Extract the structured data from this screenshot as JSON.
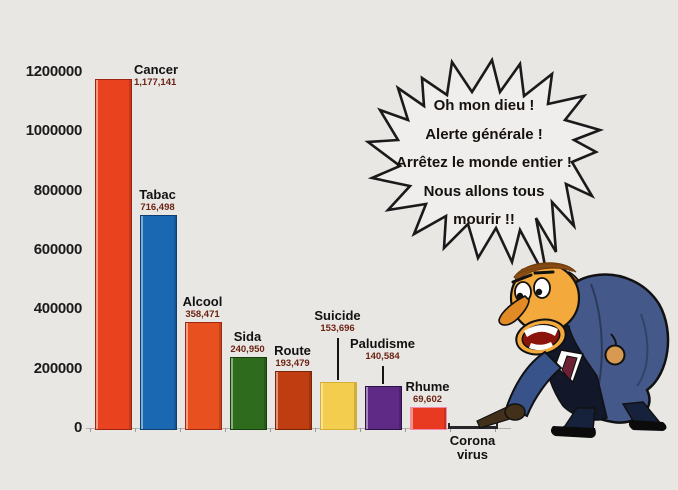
{
  "background_color": "#e9e7e4",
  "speech_bubble": {
    "lines": [
      "Oh mon dieu !",
      "Alerte générale !",
      "Arrêtez le monde entier !",
      "Nous allons tous",
      "mourir !!"
    ],
    "fill": "#efeeec",
    "stroke": "#1a1a1a"
  },
  "cartoon": {
    "description": "panicked man in navy suit, bent over, screaming and pointing at the tiny coronavirus bar",
    "suit_color": "#44598a",
    "suit_front_color": "#12182a",
    "skin_color": "#f4a93d",
    "hair_color": "#8a4e16",
    "mouth_color": "#8c150b"
  },
  "chart_data": {
    "type": "bar",
    "title": "",
    "xlabel": "",
    "ylabel": "",
    "ylim": [
      0,
      1200000
    ],
    "ytick_step": 200000,
    "ytick_labels": [
      "1200000",
      "1000000",
      "800000",
      "600000",
      "400000",
      "200000",
      "0"
    ],
    "grid": false,
    "legend": null,
    "categories": [
      "Cancer",
      "Tabac",
      "Alcool",
      "Sida",
      "Route",
      "Suicide",
      "Paludisme",
      "Rhume",
      "Corona virus"
    ],
    "bars": [
      {
        "label": "Cancer",
        "value": 1177141,
        "value_label": "1,177,141",
        "color": "#e8421f",
        "border": "#9c2410",
        "label_pos": "right",
        "leader_gap": 0
      },
      {
        "label": "Tabac",
        "value": 716498,
        "value_label": "716,498",
        "color": "#1a67b2",
        "border": "#0e3f73",
        "label_pos": "above",
        "leader_gap": 0
      },
      {
        "label": "Alcool",
        "value": 358471,
        "value_label": "358,471",
        "color": "#e85020",
        "border": "#9c2a10",
        "label_pos": "above",
        "leader_gap": 0
      },
      {
        "label": "Sida",
        "value": 240950,
        "value_label": "240,950",
        "color": "#2e6b1d",
        "border": "#16400c",
        "label_pos": "above",
        "leader_gap": 0
      },
      {
        "label": "Route",
        "value": 193479,
        "value_label": "193,479",
        "color": "#c03d12",
        "border": "#7a2408",
        "label_pos": "above",
        "leader_gap": 0
      },
      {
        "label": "Suicide",
        "value": 153696,
        "value_label": "153,696",
        "color": "#f2cd4e",
        "border": "#d8ae32",
        "label_pos": "leader",
        "leader_gap": 46
      },
      {
        "label": "Paludisme",
        "value": 140584,
        "value_label": "140,584",
        "color": "#5e2a86",
        "border": "#2e1246",
        "label_pos": "leader",
        "leader_gap": 22
      },
      {
        "label": "Rhume",
        "value": 69602,
        "value_label": "69,602",
        "color": "#e83a20",
        "border": "#f08bab",
        "label_pos": "above",
        "leader_gap": 0
      },
      {
        "label": "Corona virus",
        "value": 4000,
        "value_label": "",
        "color": "#26262a",
        "border": "#26262a",
        "label_pos": "below",
        "leader_gap": 0,
        "bar_style": "line"
      }
    ]
  }
}
